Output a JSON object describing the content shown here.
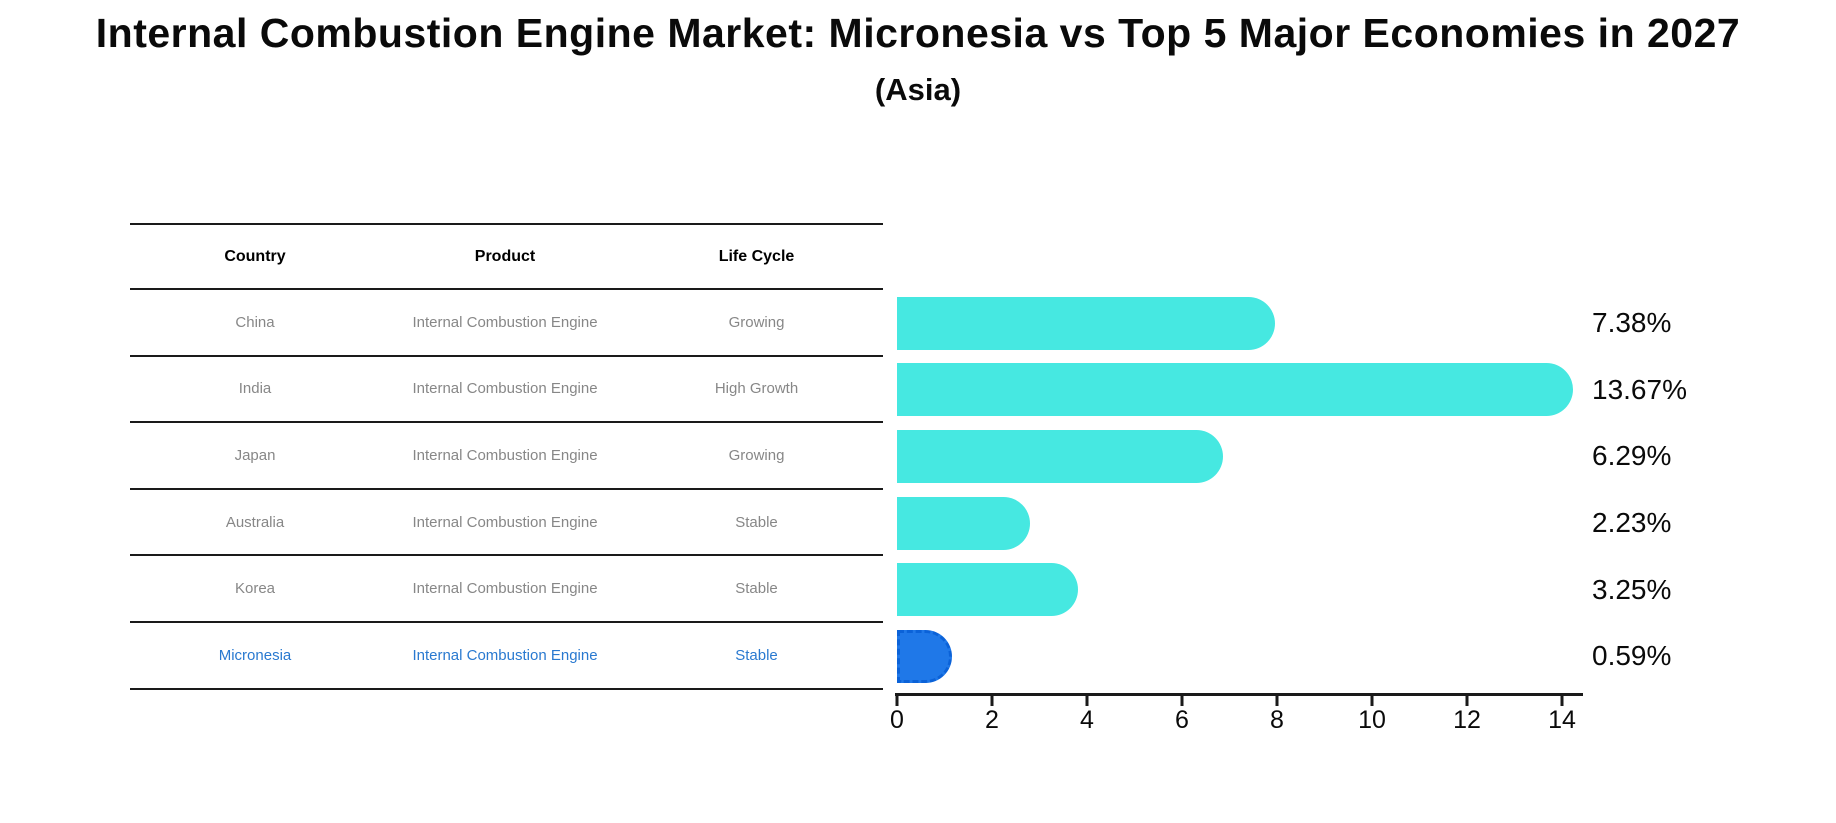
{
  "title": "Internal Combustion Engine Market: Micronesia vs Top 5 Major Economies in 2027",
  "subtitle": "(Asia)",
  "table": {
    "headers": {
      "country": "Country",
      "product": "Product",
      "life_cycle": "Life Cycle"
    },
    "rows": [
      {
        "country": "China",
        "product": "Internal Combustion Engine",
        "life_cycle": "Growing"
      },
      {
        "country": "India",
        "product": "Internal Combustion Engine",
        "life_cycle": "High Growth"
      },
      {
        "country": "Japan",
        "product": "Internal Combustion Engine",
        "life_cycle": "Growing"
      },
      {
        "country": "Australia",
        "product": "Internal Combustion Engine",
        "life_cycle": "Stable"
      },
      {
        "country": "Korea",
        "product": "Internal Combustion Engine",
        "life_cycle": "Stable"
      },
      {
        "country": "Micronesia",
        "product": "Internal Combustion Engine",
        "life_cycle": "Stable"
      }
    ],
    "highlight_row_index": 5
  },
  "chart_data": {
    "type": "bar",
    "orientation": "horizontal",
    "categories": [
      "China",
      "India",
      "Japan",
      "Australia",
      "Korea",
      "Micronesia"
    ],
    "values": [
      7.38,
      13.67,
      6.29,
      2.23,
      3.25,
      0.59
    ],
    "value_labels": [
      "7.38%",
      "13.67%",
      "6.29%",
      "2.23%",
      "3.25%",
      "0.59%"
    ],
    "xlim": [
      0,
      14
    ],
    "xticks": [
      "0",
      "2",
      "4",
      "6",
      "8",
      "10",
      "12",
      "14"
    ],
    "grid": false,
    "legend": false,
    "bar_color": "#46e8e1",
    "highlight_color": "#1f78e8",
    "highlight_border_color": "#0b62d8",
    "highlight_index": 5
  },
  "colors": {
    "title_text": "#0a0a0a",
    "table_line": "#1a1a1a",
    "table_text": "#878787",
    "highlight_text": "#2979d0",
    "value_label_text": "#0a0a0a"
  }
}
